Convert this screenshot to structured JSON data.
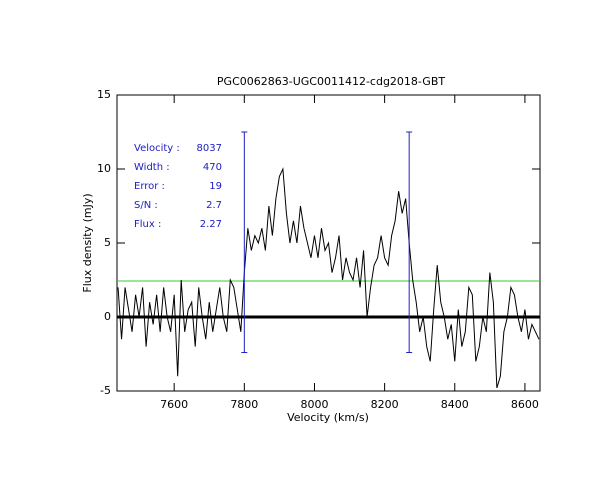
{
  "chart_data": {
    "type": "line",
    "title": "PGC0062863-UGC0011412-cdg2018-GBT",
    "x_label": "Velocity (km/s)",
    "y_label": "Flux density (mJy)",
    "xlim": [
      7437,
      8643
    ],
    "ylim": [
      -5,
      15
    ],
    "xticks": [
      7600,
      7800,
      8000,
      8200,
      8400,
      8600
    ],
    "yticks": [
      -5,
      0,
      5,
      10,
      15
    ],
    "x": [
      7440,
      7450,
      7460,
      7470,
      7480,
      7490,
      7500,
      7510,
      7520,
      7530,
      7540,
      7550,
      7560,
      7570,
      7580,
      7590,
      7600,
      7610,
      7620,
      7630,
      7640,
      7650,
      7660,
      7670,
      7680,
      7690,
      7700,
      7710,
      7720,
      7730,
      7740,
      7750,
      7760,
      7770,
      7780,
      7790,
      7800,
      7810,
      7820,
      7830,
      7840,
      7850,
      7860,
      7870,
      7880,
      7890,
      7900,
      7910,
      7920,
      7930,
      7940,
      7950,
      7960,
      7970,
      7980,
      7990,
      8000,
      8010,
      8020,
      8030,
      8040,
      8050,
      8060,
      8070,
      8080,
      8090,
      8100,
      8110,
      8120,
      8130,
      8140,
      8150,
      8160,
      8170,
      8180,
      8190,
      8200,
      8210,
      8220,
      8230,
      8240,
      8250,
      8260,
      8270,
      8280,
      8290,
      8300,
      8310,
      8320,
      8330,
      8340,
      8350,
      8360,
      8370,
      8380,
      8390,
      8400,
      8410,
      8420,
      8430,
      8440,
      8450,
      8460,
      8470,
      8480,
      8490,
      8500,
      8510,
      8520,
      8530,
      8540,
      8550,
      8560,
      8570,
      8580,
      8590,
      8600,
      8610,
      8620,
      8630,
      8640
    ],
    "series": [
      {
        "color": "#000000",
        "values": [
          2,
          -1.5,
          2,
          0.5,
          -1,
          1.5,
          0,
          2,
          -2,
          1,
          -0.5,
          1.5,
          -1,
          2,
          0,
          -1,
          1.5,
          -4,
          2.5,
          -1,
          0.5,
          1,
          -2,
          2,
          0,
          -1.5,
          1,
          -1,
          0.5,
          2,
          0,
          -1,
          2.5,
          2,
          0.5,
          -1,
          3,
          6,
          4.5,
          5.5,
          5,
          6,
          4.5,
          7.5,
          5.5,
          8,
          9.5,
          10,
          7,
          5,
          6.5,
          5,
          7.5,
          6,
          5,
          4,
          5.5,
          4,
          6,
          4.5,
          5,
          3,
          4,
          5.5,
          2.5,
          4,
          3,
          2.5,
          4,
          2,
          4.5,
          0,
          2,
          3.5,
          4,
          5.5,
          4,
          3.5,
          5.5,
          6.5,
          8.5,
          7,
          8,
          5,
          2.5,
          1,
          -1,
          0,
          -2,
          -3,
          0.5,
          3.5,
          1,
          0,
          -1.5,
          -0.5,
          -3,
          0.5,
          -2,
          -1,
          2,
          1.5,
          -3,
          -2,
          0,
          -1,
          3,
          1,
          -4.8,
          -4,
          -1,
          0,
          2,
          1.5,
          0,
          -1,
          0.5,
          -1.5,
          -0.5,
          -1,
          -1.5
        ]
      }
    ],
    "hlines": [
      {
        "value": 0,
        "color": "#000000"
      },
      {
        "value": 2.43,
        "color": "#33cc33"
      }
    ],
    "vlines": [
      {
        "x": 7800,
        "y": [
          -2.4,
          12.5
        ],
        "color": "#2020c0"
      },
      {
        "x": 8270,
        "y": [
          -2.4,
          12.5
        ],
        "color": "#2020c0"
      }
    ],
    "stats": [
      {
        "label": "Velocity :",
        "value": 8037
      },
      {
        "label": "Width  :",
        "value": 470
      },
      {
        "label": "Error  :",
        "value": 19
      },
      {
        "label": "S/N    :",
        "value": 2.7
      },
      {
        "label": "Flux   :",
        "value": 2.27
      }
    ]
  }
}
